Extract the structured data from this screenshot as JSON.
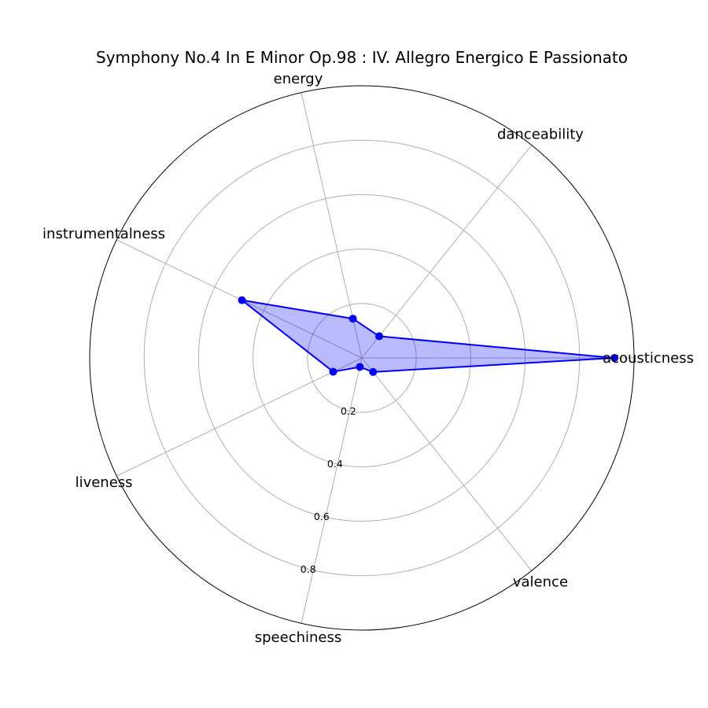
{
  "chart_data": {
    "type": "radar",
    "title": "Symphony No.4 In E Minor Op.98 : IV. Allegro Energico E Passionato",
    "axes": [
      "acousticness",
      "danceability",
      "energy",
      "instrumentalness",
      "liveness",
      "speechiness",
      "valence"
    ],
    "values": [
      0.928,
      0.102,
      0.148,
      0.489,
      0.117,
      0.034,
      0.066
    ],
    "rlim": [
      0,
      1
    ],
    "rticks": [
      0.2,
      0.4,
      0.6,
      0.8
    ],
    "rtick_labels": [
      "0.2",
      "0.4",
      "0.6",
      "0.8"
    ],
    "grid": true,
    "colors": {
      "line": "#0000ff",
      "fill": "#0000ff",
      "marker": "#0000ff",
      "grid": "#b0b0b0",
      "frame": "#000000"
    }
  }
}
